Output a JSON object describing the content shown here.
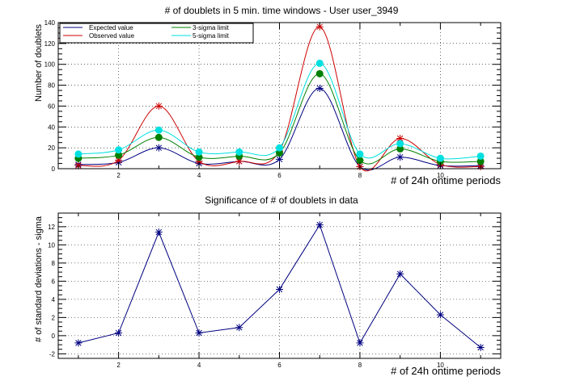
{
  "chart_data": [
    {
      "type": "line",
      "title": "# of doublets in 5 min. time windows - User user_3949",
      "xlabel": "# of 24h ontime periods",
      "ylabel": "Number of doublets",
      "xlim": [
        0.5,
        11.5
      ],
      "ylim": [
        0,
        140
      ],
      "xticks": [
        2,
        4,
        6,
        8,
        10
      ],
      "yticks": [
        0,
        20,
        40,
        60,
        80,
        100,
        120,
        140
      ],
      "grid": true,
      "legend_position": "top-left",
      "x": [
        1,
        2,
        3,
        4,
        5,
        6,
        7,
        8,
        9,
        10,
        11
      ],
      "series": [
        {
          "name": "Expected value",
          "color": "#000080",
          "marker": "star",
          "values": [
            4,
            6,
            20,
            5,
            7,
            9,
            77,
            2,
            11,
            3,
            3
          ]
        },
        {
          "name": "Observed value",
          "color": "#cc0000",
          "marker": "star",
          "values": [
            3,
            8,
            60,
            7,
            7,
            17,
            136,
            2,
            29,
            4,
            2
          ]
        },
        {
          "name": "3-sigma limit",
          "color": "#008000",
          "marker": "dot",
          "values": [
            10,
            13,
            30,
            11,
            12,
            15,
            91,
            8,
            19,
            7,
            7
          ]
        },
        {
          "name": "5-sigma limit",
          "color": "#00e0e0",
          "marker": "dot",
          "values": [
            14,
            18,
            37,
            16,
            16,
            20,
            101,
            14,
            24,
            10,
            12
          ]
        }
      ]
    },
    {
      "type": "line",
      "title": "Significance of # of doublets in data",
      "xlabel": "# of 24h ontime periods",
      "ylabel": "# of standard deviations - sigma",
      "xlim": [
        0.5,
        11.5
      ],
      "ylim": [
        -2.5,
        13.5
      ],
      "xticks": [
        2,
        4,
        6,
        8,
        10
      ],
      "yticks": [
        -2,
        0,
        2,
        4,
        6,
        8,
        10,
        12
      ],
      "grid": true,
      "x": [
        1,
        2,
        3,
        4,
        5,
        6,
        7,
        8,
        9,
        10,
        11
      ],
      "series": [
        {
          "color": "#000080",
          "marker": "star",
          "values": [
            -0.8,
            0.3,
            11.4,
            0.3,
            0.9,
            5.1,
            12.2,
            -0.8,
            6.8,
            2.3,
            -1.3
          ]
        }
      ]
    }
  ]
}
